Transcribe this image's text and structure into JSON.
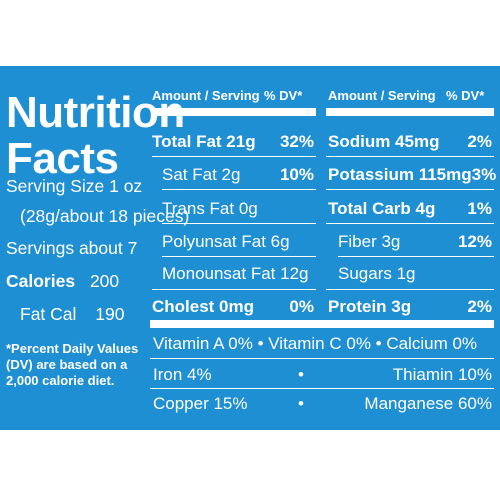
{
  "label": {
    "title_line1": "Nutrition",
    "title_line2": "Facts",
    "serving_size": "Serving Size 1 oz",
    "serving_size_detail": "(28g/about 18 pieces)",
    "servings": "Servings about 7",
    "calories_label": "Calories",
    "calories_value": "200",
    "fat_cal_label": "Fat Cal",
    "fat_cal_value": "190",
    "footnote": [
      "*Percent Daily Values",
      "(DV) are based on a",
      "2,000 calorie diet."
    ]
  },
  "left_table": {
    "header_amount": "Amount / Serving",
    "header_dv": "% DV*",
    "rows": [
      {
        "label": "Total Fat 21g",
        "dv": "32%"
      },
      {
        "label": "Sat Fat 2g",
        "dv": "10%"
      },
      {
        "label": "Trans Fat 0g",
        "dv": ""
      },
      {
        "label": "Polyunsat Fat 6g",
        "dv": ""
      },
      {
        "label": "Monounsat Fat 12g",
        "dv": ""
      },
      {
        "label": "Cholest 0mg",
        "dv": "0%"
      }
    ]
  },
  "right_table": {
    "header_amount": "Amount / Serving",
    "header_dv": "% DV*",
    "rows": [
      {
        "label": "Sodium 45mg",
        "dv": "2%"
      },
      {
        "label": "Potassium 115mg",
        "dv": "3%"
      },
      {
        "label": "Total Carb 4g",
        "dv": "1%"
      },
      {
        "label": "Fiber 3g",
        "dv": "12%"
      },
      {
        "label": "Sugars 1g",
        "dv": ""
      },
      {
        "label": "Protein 3g",
        "dv": "2%"
      }
    ]
  },
  "vitamins": {
    "row1": "Vitamin  A 0%  •  Vitamin  C 0%  •  Calcium  0%",
    "iron": "Iron   4%",
    "thiamin": "Thiamin  10%",
    "copper": "Copper  15%",
    "manganese": "Manganese  60%",
    "bullet": "•"
  },
  "colors": {
    "background": "#1f8fd4",
    "text": "#ffffff"
  }
}
